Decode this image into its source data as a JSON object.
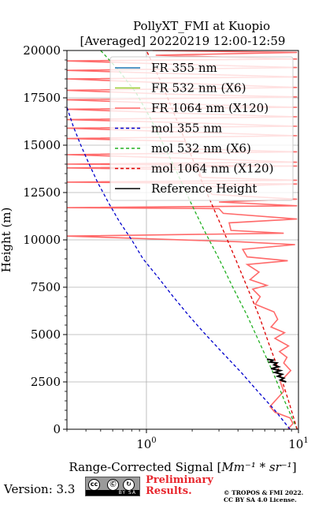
{
  "chart_data": {
    "type": "line",
    "title": "PollyXT_FMI at Kuopio",
    "subtitle": "[Averaged] 20220219 12:00-12:59",
    "ylabel": "Height (m)",
    "xlabel": "Range-Corrected Signal [",
    "xlabel_math": "Mm⁻¹ * sr⁻¹",
    "xlabel_close": "]",
    "xscale": "log",
    "xlim": [
      0.3,
      10
    ],
    "ylim": [
      0,
      20000
    ],
    "grid": true,
    "legend_position": "top-right",
    "x_ticks": [
      {
        "value": 1,
        "base": "10",
        "exp": "0"
      },
      {
        "value": 10,
        "base": "10",
        "exp": "1"
      }
    ],
    "y_ticks": [
      {
        "value": 0,
        "label": "0"
      },
      {
        "value": 2500,
        "label": "2500"
      },
      {
        "value": 5000,
        "label": "5000"
      },
      {
        "value": 7500,
        "label": "7500"
      },
      {
        "value": 10000,
        "label": "10000"
      },
      {
        "value": 12500,
        "label": "12500"
      },
      {
        "value": 15000,
        "label": "15000"
      },
      {
        "value": 17500,
        "label": "17500"
      },
      {
        "value": 20000,
        "label": "20000"
      }
    ],
    "series": [
      {
        "name": "FR 355 nm",
        "color": "#1f77b4",
        "style": "solid",
        "points": []
      },
      {
        "name": "FR 532 nm (X6)",
        "color": "#9acd32",
        "style": "solid",
        "points": []
      },
      {
        "name": "FR 1064 nm (X120)",
        "color": "#ff6a6a",
        "style": "solid",
        "points": [
          [
            8.5,
            0
          ],
          [
            9.2,
            300
          ],
          [
            8.8,
            600
          ],
          [
            7.0,
            900
          ],
          [
            6.5,
            1200
          ],
          [
            7.2,
            1600
          ],
          [
            8.0,
            2000
          ],
          [
            7.6,
            2500
          ],
          [
            8.2,
            2800
          ],
          [
            8.9,
            3100
          ],
          [
            8.0,
            3500
          ],
          [
            8.4,
            3800
          ],
          [
            7.5,
            4100
          ],
          [
            8.6,
            4400
          ],
          [
            7.0,
            4800
          ],
          [
            8.1,
            5100
          ],
          [
            6.6,
            5400
          ],
          [
            7.3,
            5800
          ],
          [
            6.9,
            6200
          ],
          [
            5.2,
            6600
          ],
          [
            5.6,
            7000
          ],
          [
            5.0,
            7400
          ],
          [
            6.2,
            7600
          ],
          [
            4.8,
            7900
          ],
          [
            5.5,
            8300
          ],
          [
            4.6,
            8700
          ],
          [
            8.5,
            8900
          ],
          [
            4.6,
            9100
          ],
          [
            4.3,
            9500
          ],
          [
            9.5,
            9750
          ],
          [
            4.1,
            9900
          ],
          [
            0.3,
            10200
          ],
          [
            8.0,
            10350
          ],
          [
            3.6,
            10500
          ],
          [
            3.5,
            10900
          ],
          [
            9.8,
            11100
          ],
          [
            3.2,
            11400
          ],
          [
            3.0,
            11650
          ],
          [
            0.3,
            11700
          ],
          [
            9.8,
            11800
          ],
          [
            3.0,
            12000
          ],
          [
            9.8,
            12150
          ],
          [
            2.7,
            12400
          ],
          [
            2.5,
            12800
          ],
          [
            9.8,
            12950
          ],
          [
            0.3,
            13050
          ],
          [
            9.8,
            13150
          ],
          [
            2.3,
            13300
          ],
          [
            2.2,
            13700
          ],
          [
            0.3,
            13800
          ],
          [
            9.8,
            13900
          ],
          [
            0.3,
            14000
          ],
          [
            9.8,
            14100
          ],
          [
            2.0,
            14300
          ],
          [
            0.3,
            14500
          ],
          [
            9.8,
            14650
          ],
          [
            1.9,
            14800
          ],
          [
            1.8,
            15200
          ],
          [
            0.3,
            15350
          ],
          [
            9.8,
            15500
          ],
          [
            1.7,
            15700
          ],
          [
            0.3,
            15900
          ],
          [
            9.8,
            16000
          ],
          [
            1.6,
            16200
          ],
          [
            0.3,
            16350
          ],
          [
            9.8,
            16500
          ],
          [
            1.5,
            16700
          ],
          [
            0.3,
            16900
          ],
          [
            9.8,
            17000
          ],
          [
            1.4,
            17200
          ],
          [
            0.3,
            17400
          ],
          [
            9.8,
            17550
          ],
          [
            1.35,
            17700
          ],
          [
            0.3,
            17900
          ],
          [
            9.8,
            18050
          ],
          [
            1.3,
            18300
          ],
          [
            0.3,
            18500
          ],
          [
            9.8,
            18600
          ],
          [
            1.25,
            18800
          ],
          [
            0.3,
            18950
          ],
          [
            9.8,
            19100
          ],
          [
            1.2,
            19300
          ],
          [
            0.3,
            19450
          ],
          [
            9.8,
            19550
          ],
          [
            1.15,
            19750
          ],
          [
            9.8,
            19900
          ],
          [
            1.1,
            20000
          ]
        ]
      },
      {
        "name": "mol 355 nm",
        "color": "#0000cc",
        "style": "dashed",
        "points": [
          [
            8.8,
            0
          ],
          [
            7.0,
            1000
          ],
          [
            5.4,
            2000
          ],
          [
            4.2,
            3000
          ],
          [
            3.2,
            4000
          ],
          [
            2.45,
            5000
          ],
          [
            1.9,
            6000
          ],
          [
            1.5,
            7000
          ],
          [
            1.2,
            8000
          ],
          [
            0.95,
            9000
          ],
          [
            0.8,
            10000
          ],
          [
            0.66,
            11000
          ],
          [
            0.56,
            12000
          ],
          [
            0.48,
            13000
          ],
          [
            0.42,
            14000
          ],
          [
            0.37,
            15000
          ],
          [
            0.33,
            16000
          ],
          [
            0.3,
            17000
          ]
        ]
      },
      {
        "name": "mol 532 nm (X6)",
        "color": "#22b022",
        "style": "dashed",
        "points": [
          [
            9.8,
            0
          ],
          [
            8.1,
            1500
          ],
          [
            6.8,
            3000
          ],
          [
            5.6,
            4500
          ],
          [
            4.6,
            6000
          ],
          [
            3.7,
            7500
          ],
          [
            3.0,
            9000
          ],
          [
            2.4,
            10500
          ],
          [
            1.95,
            12000
          ],
          [
            1.6,
            13500
          ],
          [
            1.3,
            15000
          ],
          [
            1.05,
            16500
          ],
          [
            0.85,
            17800
          ],
          [
            0.65,
            19000
          ],
          [
            0.5,
            20000
          ]
        ]
      },
      {
        "name": "mol 1064 nm (X120)",
        "color": "#dd0000",
        "style": "dashed",
        "points": [
          [
            9.8,
            0
          ],
          [
            8.6,
            1500
          ],
          [
            7.5,
            3000
          ],
          [
            6.4,
            4500
          ],
          [
            5.5,
            6000
          ],
          [
            4.6,
            7500
          ],
          [
            3.85,
            9000
          ],
          [
            3.2,
            10500
          ],
          [
            2.65,
            12000
          ],
          [
            2.2,
            13500
          ],
          [
            1.85,
            15000
          ],
          [
            1.55,
            16500
          ],
          [
            1.3,
            18000
          ],
          [
            1.1,
            19300
          ],
          [
            1.0,
            20000
          ]
        ]
      },
      {
        "name": "Reference Height",
        "color": "#000000",
        "style": "solid",
        "points": [
          [
            6.2,
            3700
          ],
          [
            6.8,
            3650
          ],
          [
            6.5,
            3550
          ],
          [
            7.2,
            3500
          ],
          [
            6.9,
            3400
          ],
          [
            7.4,
            3300
          ],
          [
            6.6,
            3200
          ],
          [
            7.6,
            3100
          ],
          [
            7.0,
            3000
          ],
          [
            7.8,
            2900
          ],
          [
            7.3,
            2800
          ],
          [
            8.0,
            2700
          ],
          [
            7.6,
            2600
          ],
          [
            8.3,
            2500
          ]
        ]
      }
    ]
  },
  "footer": {
    "version": "Version: 3.3",
    "cc_icons": [
      "cc",
      "by",
      "sa"
    ],
    "cc_icon_labels": {
      "cc": "cc",
      "by": "Ⓒ",
      "sa": "↻"
    },
    "cc_strip": "BY SA",
    "preliminary_line1": "Preliminary",
    "preliminary_line2": "Results.",
    "copyright_line1": "© TROPOS & FMI 2022.",
    "copyright_line2": "CC BY SA 4.0 License."
  }
}
